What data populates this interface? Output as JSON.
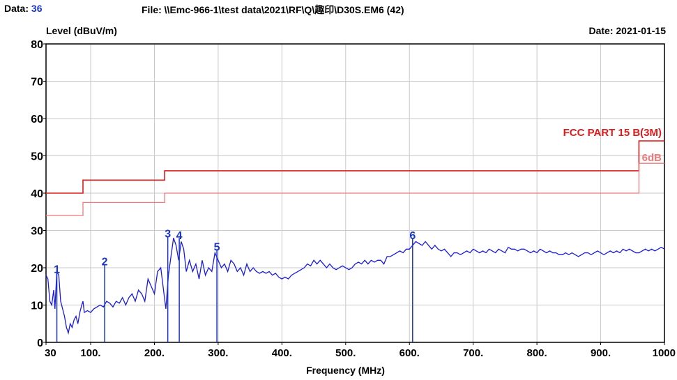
{
  "header": {
    "data_label": "Data:",
    "data_number": "36",
    "file_path": "File: \\\\Emc-966-1\\test data\\2021\\RF\\Q\\趣印\\D30S.EM6  (42)",
    "date": "Date: 2021-01-15"
  },
  "colors": {
    "trace": "#1a1ae0",
    "limit": "#e01a1a",
    "limit_margin": "#f07a7a",
    "grid": "#c8c8c8",
    "marker": "#1a36c8"
  },
  "chart_data": {
    "type": "line",
    "title": "",
    "xlabel": "Frequency (MHz)",
    "ylabel": "Level (dBuV/m)",
    "xlim": [
      30,
      1000
    ],
    "ylim": [
      0,
      80
    ],
    "x_ticks": [
      "30",
      "100.",
      "200.",
      "300.",
      "400.",
      "500.",
      "600.",
      "700.",
      "800.",
      "900.",
      "1000"
    ],
    "x_tick_values": [
      30,
      100,
      200,
      300,
      400,
      500,
      600,
      700,
      800,
      900,
      1000
    ],
    "y_ticks": [
      0,
      10,
      20,
      30,
      40,
      50,
      60,
      70,
      80
    ],
    "grid": true,
    "series": [
      {
        "name": "FCC PART 15 B(3M)",
        "kind": "limit",
        "points": [
          [
            30,
            40
          ],
          [
            88,
            40
          ],
          [
            88,
            43.5
          ],
          [
            216,
            43.5
          ],
          [
            216,
            46
          ],
          [
            960,
            46
          ],
          [
            960,
            54
          ],
          [
            1000,
            54
          ]
        ]
      },
      {
        "name": "6dB",
        "kind": "margin",
        "points": [
          [
            30,
            34
          ],
          [
            88,
            34
          ],
          [
            88,
            37.5
          ],
          [
            216,
            37.5
          ],
          [
            216,
            40
          ],
          [
            960,
            40
          ],
          [
            960,
            48
          ],
          [
            1000,
            48
          ]
        ]
      },
      {
        "name": "",
        "kind": "trace",
        "points": [
          [
            30,
            18
          ],
          [
            33,
            17
          ],
          [
            36,
            11
          ],
          [
            39,
            10
          ],
          [
            42,
            14
          ],
          [
            44,
            9
          ],
          [
            47,
            19
          ],
          [
            50,
            18
          ],
          [
            53,
            11
          ],
          [
            56,
            9
          ],
          [
            59,
            7
          ],
          [
            62,
            4
          ],
          [
            65,
            2.5
          ],
          [
            68,
            5
          ],
          [
            71,
            4
          ],
          [
            74,
            6
          ],
          [
            77,
            7
          ],
          [
            80,
            5
          ],
          [
            83,
            8
          ],
          [
            86,
            10
          ],
          [
            88,
            11
          ],
          [
            90,
            8
          ],
          [
            95,
            8.5
          ],
          [
            100,
            8
          ],
          [
            105,
            9
          ],
          [
            110,
            9.5
          ],
          [
            115,
            10
          ],
          [
            120,
            9.5
          ],
          [
            125,
            11
          ],
          [
            130,
            10.5
          ],
          [
            135,
            9.5
          ],
          [
            140,
            11
          ],
          [
            145,
            10.5
          ],
          [
            150,
            12
          ],
          [
            155,
            10
          ],
          [
            160,
            12
          ],
          [
            165,
            13
          ],
          [
            170,
            11
          ],
          [
            175,
            14
          ],
          [
            180,
            13
          ],
          [
            185,
            11
          ],
          [
            190,
            17
          ],
          [
            195,
            15
          ],
          [
            200,
            13
          ],
          [
            205,
            19
          ],
          [
            210,
            20
          ],
          [
            215,
            13
          ],
          [
            218,
            9
          ],
          [
            222,
            18
          ],
          [
            226,
            23
          ],
          [
            230,
            28
          ],
          [
            234,
            26
          ],
          [
            238,
            22
          ],
          [
            242,
            27
          ],
          [
            246,
            25
          ],
          [
            250,
            19
          ],
          [
            255,
            22
          ],
          [
            260,
            19
          ],
          [
            265,
            21
          ],
          [
            270,
            17
          ],
          [
            275,
            22
          ],
          [
            280,
            18
          ],
          [
            285,
            20
          ],
          [
            290,
            19
          ],
          [
            295,
            24
          ],
          [
            300,
            22
          ],
          [
            305,
            20
          ],
          [
            310,
            21
          ],
          [
            315,
            19
          ],
          [
            320,
            22
          ],
          [
            325,
            21
          ],
          [
            330,
            19
          ],
          [
            335,
            20
          ],
          [
            340,
            18
          ],
          [
            345,
            21
          ],
          [
            350,
            19
          ],
          [
            355,
            20
          ],
          [
            360,
            19
          ],
          [
            365,
            18.5
          ],
          [
            370,
            19
          ],
          [
            375,
            18.5
          ],
          [
            380,
            19
          ],
          [
            385,
            18
          ],
          [
            390,
            18.5
          ],
          [
            395,
            17.5
          ],
          [
            400,
            17
          ],
          [
            405,
            17.5
          ],
          [
            410,
            17
          ],
          [
            415,
            18
          ],
          [
            420,
            18.5
          ],
          [
            425,
            19
          ],
          [
            430,
            19.5
          ],
          [
            435,
            20
          ],
          [
            440,
            21
          ],
          [
            445,
            20.5
          ],
          [
            450,
            22
          ],
          [
            455,
            21
          ],
          [
            460,
            22
          ],
          [
            465,
            21
          ],
          [
            470,
            20
          ],
          [
            475,
            21
          ],
          [
            480,
            20
          ],
          [
            485,
            19.5
          ],
          [
            490,
            20
          ],
          [
            495,
            20.5
          ],
          [
            500,
            20
          ],
          [
            505,
            19.5
          ],
          [
            510,
            20
          ],
          [
            515,
            21
          ],
          [
            520,
            21.5
          ],
          [
            525,
            21
          ],
          [
            530,
            22
          ],
          [
            535,
            21
          ],
          [
            540,
            22
          ],
          [
            545,
            21.5
          ],
          [
            550,
            22
          ],
          [
            555,
            22
          ],
          [
            560,
            21
          ],
          [
            565,
            23
          ],
          [
            570,
            23
          ],
          [
            575,
            23.5
          ],
          [
            580,
            24
          ],
          [
            585,
            24.5
          ],
          [
            590,
            24
          ],
          [
            595,
            25
          ],
          [
            600,
            25
          ],
          [
            605,
            26
          ],
          [
            610,
            27
          ],
          [
            615,
            26.5
          ],
          [
            620,
            26
          ],
          [
            625,
            27
          ],
          [
            630,
            26
          ],
          [
            635,
            25
          ],
          [
            640,
            26
          ],
          [
            645,
            25
          ],
          [
            650,
            24.5
          ],
          [
            655,
            25
          ],
          [
            660,
            24
          ],
          [
            665,
            23
          ],
          [
            670,
            24
          ],
          [
            675,
            24
          ],
          [
            680,
            23.5
          ],
          [
            685,
            24
          ],
          [
            690,
            24.5
          ],
          [
            695,
            24
          ],
          [
            700,
            25
          ],
          [
            705,
            24.5
          ],
          [
            710,
            24
          ],
          [
            715,
            24.5
          ],
          [
            720,
            24
          ],
          [
            725,
            25
          ],
          [
            730,
            24.5
          ],
          [
            735,
            24
          ],
          [
            740,
            25
          ],
          [
            745,
            24.5
          ],
          [
            750,
            24
          ],
          [
            755,
            25.5
          ],
          [
            760,
            25
          ],
          [
            765,
            25
          ],
          [
            770,
            24.5
          ],
          [
            775,
            25
          ],
          [
            780,
            25
          ],
          [
            785,
            24.5
          ],
          [
            790,
            24
          ],
          [
            795,
            24.5
          ],
          [
            800,
            24
          ],
          [
            805,
            25
          ],
          [
            810,
            24.5
          ],
          [
            815,
            24
          ],
          [
            820,
            24.5
          ],
          [
            825,
            24
          ],
          [
            830,
            24
          ],
          [
            835,
            23.5
          ],
          [
            840,
            23.5
          ],
          [
            845,
            24
          ],
          [
            850,
            23.5
          ],
          [
            855,
            24
          ],
          [
            860,
            23.5
          ],
          [
            865,
            23
          ],
          [
            870,
            23.5
          ],
          [
            875,
            24
          ],
          [
            880,
            24
          ],
          [
            885,
            23.5
          ],
          [
            890,
            24
          ],
          [
            895,
            24.5
          ],
          [
            900,
            24
          ],
          [
            905,
            23.5
          ],
          [
            910,
            24
          ],
          [
            915,
            24.5
          ],
          [
            920,
            24
          ],
          [
            925,
            24.5
          ],
          [
            930,
            24
          ],
          [
            935,
            25
          ],
          [
            940,
            24.5
          ],
          [
            945,
            25
          ],
          [
            950,
            24.5
          ],
          [
            955,
            24
          ],
          [
            960,
            24
          ],
          [
            965,
            24.5
          ],
          [
            970,
            25
          ],
          [
            975,
            24.5
          ],
          [
            980,
            25
          ],
          [
            985,
            24.5
          ],
          [
            990,
            25
          ],
          [
            995,
            25.5
          ],
          [
            1000,
            25
          ]
        ]
      }
    ],
    "markers": [
      {
        "label": "1",
        "x": 47,
        "y": 19
      },
      {
        "label": "2",
        "x": 122,
        "y": 21
      },
      {
        "label": "3",
        "x": 221,
        "y": 28.5
      },
      {
        "label": "4",
        "x": 239,
        "y": 28
      },
      {
        "label": "5",
        "x": 298,
        "y": 25
      },
      {
        "label": "6",
        "x": 605,
        "y": 28
      }
    ],
    "annotations": [
      {
        "text": "FCC PART 15 B(3M)",
        "series": "limit"
      },
      {
        "text": "6dB",
        "series": "margin"
      }
    ]
  }
}
